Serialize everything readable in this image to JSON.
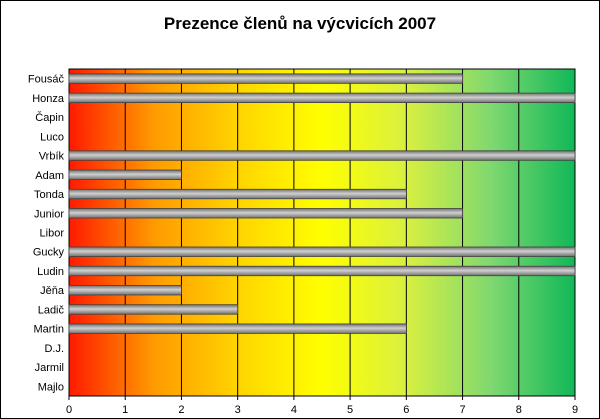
{
  "chart_data": {
    "type": "bar",
    "orientation": "horizontal",
    "title": "Prezence členů na výcvicích 2007",
    "xlabel": "",
    "ylabel": "",
    "categories": [
      "Fousáč",
      "Honza",
      "Čapin",
      "Luco",
      "Vrbík",
      "Adam",
      "Tonda",
      "Junior",
      "Libor",
      "Gucky",
      "Ludin",
      "Jěňa",
      "Ladič",
      "Martin",
      "D.J.",
      "Jarmil",
      "Majlo"
    ],
    "values": [
      7,
      9,
      0,
      0,
      9,
      2,
      6,
      7,
      0,
      9,
      9,
      2,
      3,
      6,
      0,
      0,
      0
    ],
    "xlim": [
      0,
      9
    ],
    "xticks": [
      "0",
      "1",
      "2",
      "3",
      "4",
      "5",
      "6",
      "7",
      "8",
      "9"
    ],
    "grid": "vertical",
    "legend": "none",
    "colors": {
      "background_gradient": [
        "#ff1a00",
        "#ff9a00",
        "#ffd400",
        "#ffff00",
        "#d8f040",
        "#80d870",
        "#10b858"
      ],
      "bar": "#707070",
      "bar_highlight": "#d0d0d0",
      "grid": "#000000"
    }
  }
}
